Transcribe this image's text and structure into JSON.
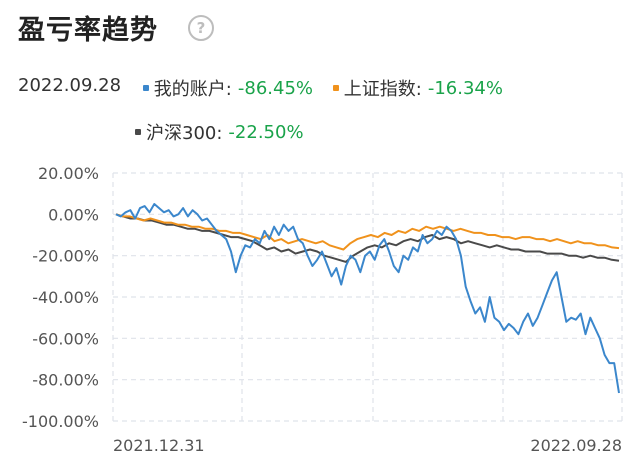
{
  "header": {
    "title": "盈亏率趋势",
    "help_icon": "question-circle-icon",
    "help_symbol": "?"
  },
  "legend": {
    "date": "2022.09.28",
    "items": [
      {
        "label": "我的账户:",
        "value": "-86.45%",
        "color": "#3b87cc"
      },
      {
        "label": "上证指数:",
        "value": "-16.34%",
        "color": "#f0921c"
      },
      {
        "label": "沪深300:",
        "value": "-22.50%",
        "color": "#4a4a4a"
      }
    ]
  },
  "chart_data": {
    "type": "line",
    "ylim": [
      -100,
      20
    ],
    "yticks": [
      "20.00%",
      "0.00%",
      "-20.00%",
      "-40.00%",
      "-60.00%",
      "-80.00%",
      "-100.00%"
    ],
    "xlabels": [
      "2021.12.31",
      "2022.09.28"
    ],
    "grid": true,
    "series": [
      {
        "name": "我的账户",
        "color": "#3b87cc",
        "values": [
          0,
          -1,
          1,
          2,
          -2,
          3,
          4,
          1,
          5,
          3,
          1,
          2,
          -1,
          0,
          3,
          -1,
          2,
          0,
          -3,
          -2,
          -5,
          -8,
          -10,
          -12,
          -18,
          -28,
          -20,
          -15,
          -16,
          -12,
          -14,
          -8,
          -12,
          -6,
          -10,
          -5,
          -8,
          -6,
          -12,
          -14,
          -20,
          -25,
          -22,
          -18,
          -24,
          -30,
          -26,
          -34,
          -25,
          -20,
          -22,
          -28,
          -20,
          -18,
          -22,
          -15,
          -12,
          -18,
          -25,
          -28,
          -20,
          -22,
          -16,
          -18,
          -10,
          -14,
          -12,
          -8,
          -10,
          -6,
          -8,
          -12,
          -20,
          -35,
          -42,
          -48,
          -45,
          -52,
          -40,
          -50,
          -52,
          -56,
          -53,
          -55,
          -58,
          -52,
          -48,
          -54,
          -50,
          -44,
          -38,
          -32,
          -28,
          -40,
          -52,
          -50,
          -51,
          -48,
          -58,
          -50,
          -55,
          -60,
          -68,
          -72,
          -72,
          -86.45
        ]
      },
      {
        "name": "上证指数",
        "color": "#f0921c",
        "values": [
          0,
          -1,
          -1,
          -2,
          -3,
          -2,
          -3,
          -4,
          -4,
          -5,
          -5,
          -6,
          -6,
          -7,
          -7,
          -8,
          -8,
          -9,
          -9,
          -10,
          -11,
          -12,
          -10,
          -13,
          -12,
          -14,
          -13,
          -12,
          -13,
          -14,
          -13,
          -15,
          -16,
          -17,
          -14,
          -12,
          -11,
          -10,
          -11,
          -9,
          -10,
          -8,
          -9,
          -7,
          -8,
          -6,
          -7,
          -6,
          -7,
          -8,
          -7,
          -8,
          -9,
          -9,
          -10,
          -10,
          -11,
          -11,
          -12,
          -11,
          -11,
          -12,
          -12,
          -13,
          -12,
          -13,
          -14,
          -13,
          -14,
          -14,
          -15,
          -15,
          -16,
          -16.34
        ]
      },
      {
        "name": "沪深300",
        "color": "#4a4a4a",
        "values": [
          0,
          -1,
          -2,
          -2,
          -3,
          -3,
          -4,
          -5,
          -5,
          -6,
          -7,
          -7,
          -8,
          -8,
          -9,
          -10,
          -11,
          -11,
          -12,
          -13,
          -15,
          -17,
          -16,
          -18,
          -17,
          -19,
          -18,
          -17,
          -18,
          -20,
          -21,
          -22,
          -23,
          -20,
          -18,
          -16,
          -15,
          -16,
          -14,
          -15,
          -13,
          -12,
          -13,
          -11,
          -10,
          -12,
          -11,
          -12,
          -14,
          -13,
          -14,
          -15,
          -16,
          -15,
          -16,
          -17,
          -17,
          -18,
          -18,
          -18,
          -19,
          -19,
          -19,
          -20,
          -20,
          -21,
          -20,
          -21,
          -21,
          -22,
          -22.5
        ]
      }
    ]
  }
}
